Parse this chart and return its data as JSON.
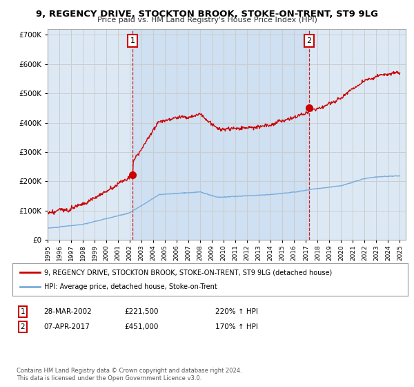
{
  "title": "9, REGENCY DRIVE, STOCKTON BROOK, STOKE-ON-TRENT, ST9 9LG",
  "subtitle": "Price paid vs. HM Land Registry's House Price Index (HPI)",
  "background_color": "#ffffff",
  "plot_bg_color": "#dce9f5",
  "plot_bg_highlight": "#c8dcf0",
  "grid_color": "#cccccc",
  "sale1_date": "28-MAR-2002",
  "sale1_price": 221500,
  "sale1_label": "220% ↑ HPI",
  "sale2_date": "07-APR-2017",
  "sale2_price": 451000,
  "sale2_label": "170% ↑ HPI",
  "legend_line1": "9, REGENCY DRIVE, STOCKTON BROOK, STOKE-ON-TRENT, ST9 9LG (detached house)",
  "legend_line2": "HPI: Average price, detached house, Stoke-on-Trent",
  "footnote": "Contains HM Land Registry data © Crown copyright and database right 2024.\nThis data is licensed under the Open Government Licence v3.0.",
  "hpi_color": "#7aaddc",
  "property_color": "#cc0000",
  "dashed_line_color": "#cc0000",
  "ylim": [
    0,
    720000
  ],
  "yticks": [
    0,
    100000,
    200000,
    300000,
    400000,
    500000,
    600000,
    700000
  ],
  "x_start_year": 1995,
  "x_end_year": 2025,
  "sale1_x": 2002.23,
  "sale2_x": 2017.27
}
